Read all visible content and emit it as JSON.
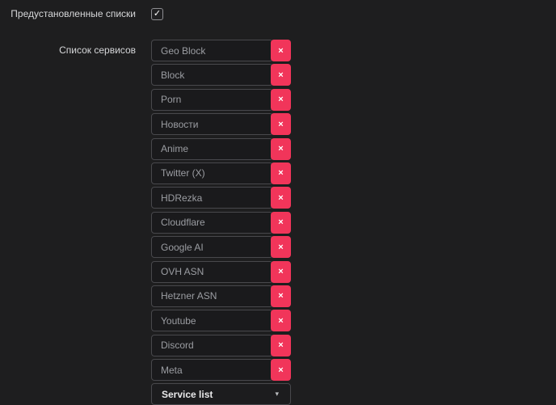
{
  "page": {
    "background": "#1e1e1f",
    "accent_red": "#f1355a",
    "border_gray": "#48484c"
  },
  "form": {
    "preset_lists": {
      "label": "Предустановленные списки",
      "checked": true,
      "check_icon": "✓"
    },
    "services": {
      "label": "Список сервисов",
      "items": [
        "Geo Block",
        "Block",
        "Porn",
        "Новости",
        "Anime",
        "Twitter (X)",
        "HDRezka",
        "Cloudflare",
        "Google AI",
        "OVH ASN",
        "Hetzner ASN",
        "Youtube",
        "Discord",
        "Meta"
      ],
      "remove_icon": "×",
      "dropdown": {
        "selected": "Service list",
        "caret_icon": "▾"
      }
    }
  }
}
